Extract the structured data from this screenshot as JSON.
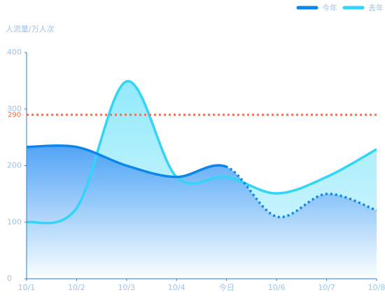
{
  "chart_data": {
    "type": "line",
    "y_axis_label": "人流量/万人次",
    "categories": [
      "10/1",
      "10/2",
      "10/3",
      "10/4",
      "今日",
      "10/6",
      "10/7",
      "10/8"
    ],
    "series": [
      {
        "name": "今年",
        "color": "#0b86ea",
        "values": [
          233,
          233,
          200,
          180,
          198,
          110,
          150,
          121
        ]
      },
      {
        "name": "去年",
        "color": "#33d4f7",
        "values": [
          100,
          125,
          349,
          180,
          180,
          151,
          180,
          229
        ]
      }
    ],
    "dashed_from": "今日",
    "markline": 290,
    "markline_color": "#f0704c",
    "ylim": [
      0,
      400
    ],
    "yticks": [
      0,
      100,
      200,
      300,
      400
    ],
    "legend": "top-right"
  }
}
